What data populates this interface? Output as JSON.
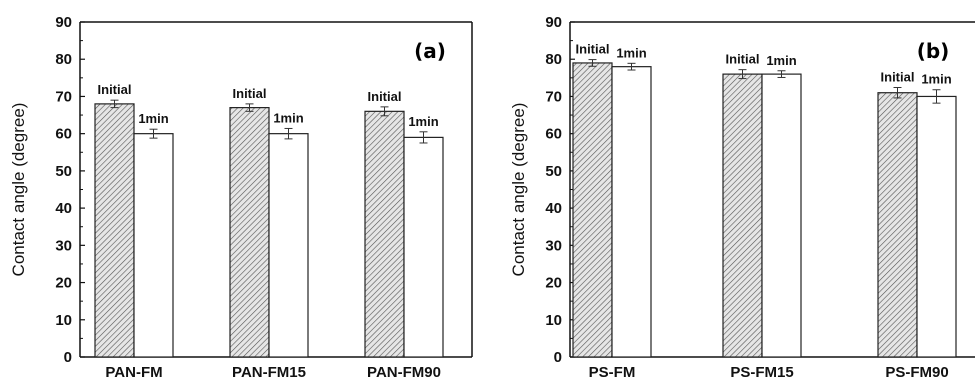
{
  "chart_data": [
    {
      "type": "bar",
      "panel_label": "(a)",
      "ylabel": "Contact angle (degree)",
      "ylim": [
        0,
        90
      ],
      "yticks": [
        "0",
        "10",
        "20",
        "30",
        "40",
        "50",
        "60",
        "70",
        "80",
        "90"
      ],
      "categories": [
        "PAN-FM",
        "PAN-FM15",
        "PAN-FM90"
      ],
      "series": [
        {
          "name": "Initial",
          "values": [
            68,
            67,
            66
          ],
          "errors": [
            1.0,
            1.0,
            1.2
          ],
          "fill": "hatched"
        },
        {
          "name": "1min",
          "values": [
            60,
            60,
            59
          ],
          "errors": [
            1.2,
            1.4,
            1.5
          ],
          "fill": "white"
        }
      ]
    },
    {
      "type": "bar",
      "panel_label": "(b)",
      "ylabel": "Contact angle (degree)",
      "ylim": [
        0,
        90
      ],
      "yticks": [
        "0",
        "10",
        "20",
        "30",
        "40",
        "50",
        "60",
        "70",
        "80",
        "90"
      ],
      "categories": [
        "PS-FM",
        "PS-FM15",
        "PS-FM90"
      ],
      "series": [
        {
          "name": "Initial",
          "values": [
            79,
            76,
            71
          ],
          "errors": [
            0.9,
            1.2,
            1.4
          ],
          "fill": "hatched"
        },
        {
          "name": "1min",
          "values": [
            78,
            76,
            70
          ],
          "errors": [
            0.9,
            0.9,
            1.8
          ],
          "fill": "white"
        }
      ]
    }
  ],
  "colors": {
    "axis": "#111111",
    "bar_edge": "#222222",
    "hatch": "#555555",
    "hatch_bg": "#e6e6e6",
    "open_bar": "#ffffff"
  }
}
